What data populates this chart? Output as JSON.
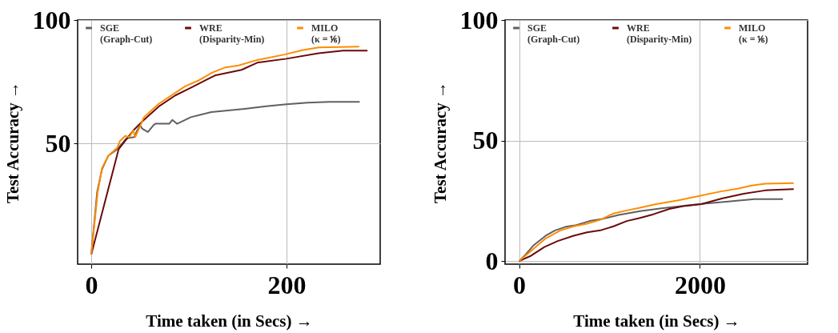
{
  "chart_data": [
    {
      "type": "line",
      "xlabel": "Time taken (in Secs) →",
      "ylabel": "Test Accuracy →",
      "xlim": [
        -14,
        296
      ],
      "ylim": [
        1,
        100
      ],
      "xticks": [
        0,
        200
      ],
      "yticks": [
        50,
        100
      ],
      "grid": true,
      "legend": "top",
      "line_style": "solid",
      "marker": "none",
      "series": [
        {
          "name": "SGE (Graph-Cut)",
          "color": "#606060",
          "x": [
            0,
            6,
            11,
            17.5,
            26.6,
            36,
            44,
            47,
            50,
            52,
            58,
            63.6,
            66,
            80,
            83,
            88,
            102,
            113,
            123,
            140,
            157,
            179,
            200,
            222,
            244,
            275
          ],
          "values": [
            5,
            30.3,
            39.5,
            45,
            47.6,
            52,
            52.5,
            55.2,
            57.3,
            56,
            54.6,
            57.3,
            58,
            58,
            59.5,
            57.9,
            60.6,
            61.7,
            62.7,
            63.3,
            64,
            65,
            65.8,
            66.5,
            66.8,
            66.8
          ]
        },
        {
          "name": "WRE (Disparity-Min)",
          "color": "#6b0a0a",
          "x": [
            0,
            28,
            43,
            52.6,
            69,
            86,
            102,
            126.6,
            154,
            170,
            200,
            233,
            258,
            283
          ],
          "values": [
            5,
            47.6,
            55.2,
            59,
            64.9,
            69.4,
            72.5,
            77.5,
            79.8,
            82.7,
            84.3,
            86.5,
            87.6,
            87.6
          ]
        },
        {
          "name": "MILO (κ = ⅙)",
          "color": "#ff8c00",
          "x": [
            0,
            6.6,
            11,
            17.5,
            26.6,
            29.3,
            34.8,
            39,
            43,
            45,
            54,
            69,
            96.4,
            110,
            124,
            137.5,
            151,
            170,
            198,
            217,
            233,
            274.5
          ],
          "values": [
            5,
            30.3,
            40,
            45,
            48.2,
            50.9,
            53,
            52.5,
            55.2,
            52.5,
            60.6,
            66,
            73.2,
            75.5,
            78.7,
            80.8,
            81.6,
            83.8,
            86,
            87.8,
            88.9,
            89.2
          ]
        }
      ]
    },
    {
      "type": "line",
      "xlabel": "Time taken (in Secs) →",
      "ylabel": "Test Accuracy →",
      "xlim": [
        -156,
        3191
      ],
      "ylim": [
        -1.3,
        100
      ],
      "xticks": [
        0,
        2000
      ],
      "yticks": [
        0,
        50,
        100
      ],
      "grid": true,
      "legend": "top",
      "line_style": "solid",
      "marker": "none",
      "series": [
        {
          "name": "SGE (Graph-Cut)",
          "color": "#606060",
          "x": [
            0,
            74,
            162,
            294,
            397,
            515,
            632,
            779,
            926,
            1103,
            1338,
            1574,
            1809,
            2044,
            2338,
            2603,
            2918
          ],
          "values": [
            0,
            2.8,
            6.6,
            10.5,
            12.7,
            14.2,
            14.9,
            16.6,
            17.5,
            19.1,
            20.7,
            21.9,
            22.9,
            23.8,
            24.8,
            25.7,
            25.7
          ]
        },
        {
          "name": "WRE (Disparity-Min)",
          "color": "#6b0a0a",
          "x": [
            0,
            132,
            279,
            426,
            603,
            750,
            897,
            1044,
            1191,
            1338,
            1485,
            1662,
            1838,
            2015,
            2250,
            2485,
            2721,
            2868,
            3038
          ],
          "values": [
            0,
            2.2,
            5.8,
            8.3,
            10.5,
            11.9,
            12.7,
            14.4,
            16.6,
            17.9,
            19.4,
            21.6,
            22.9,
            23.6,
            26,
            27.9,
            29.3,
            29.6,
            29.8
          ]
        },
        {
          "name": "MILO (κ = ⅙)",
          "color": "#ff8c00",
          "x": [
            0,
            103,
            294,
            456,
            603,
            750,
            897,
            1044,
            1191,
            1338,
            1515,
            1750,
            1985,
            2221,
            2426,
            2574,
            2721,
            3038
          ],
          "values": [
            0,
            3.3,
            9.4,
            12.7,
            14.4,
            15.5,
            17.1,
            19.7,
            21,
            22.1,
            23.6,
            25.1,
            26.9,
            28.8,
            30.1,
            31.3,
            32.1,
            32.3
          ]
        }
      ]
    }
  ]
}
